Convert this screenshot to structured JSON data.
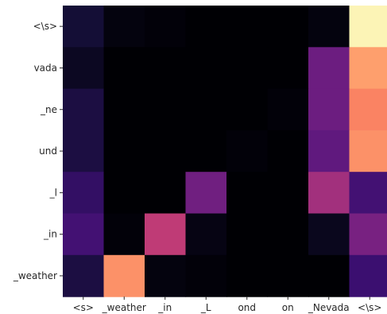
{
  "chart_data": {
    "type": "heatmap",
    "title": "",
    "xlabel": "",
    "ylabel": "",
    "colormap": "magma",
    "value_range": [
      0,
      1
    ],
    "colorbar": false,
    "x_labels": [
      "<s>",
      "_weather",
      "_in",
      "_L",
      "ond",
      "on",
      "_Nevada",
      "<\\s>"
    ],
    "y_labels": [
      "<\\s>",
      "vada",
      "_ne",
      "und",
      "_l",
      "_in",
      "_weather"
    ],
    "values": [
      [
        0.1,
        0.02,
        0.01,
        0.0,
        0.0,
        0.0,
        0.02,
        0.98
      ],
      [
        0.06,
        0.0,
        0.0,
        0.0,
        0.0,
        0.0,
        0.32,
        0.8
      ],
      [
        0.12,
        0.0,
        0.0,
        0.0,
        0.0,
        0.01,
        0.32,
        0.74
      ],
      [
        0.12,
        0.0,
        0.0,
        0.0,
        0.01,
        0.0,
        0.29,
        0.77
      ],
      [
        0.18,
        0.0,
        0.0,
        0.33,
        0.0,
        0.0,
        0.45,
        0.22
      ],
      [
        0.22,
        0.01,
        0.52,
        0.03,
        0.0,
        0.0,
        0.05,
        0.35
      ],
      [
        0.12,
        0.77,
        0.02,
        0.01,
        0.0,
        0.0,
        0.0,
        0.2
      ]
    ]
  }
}
